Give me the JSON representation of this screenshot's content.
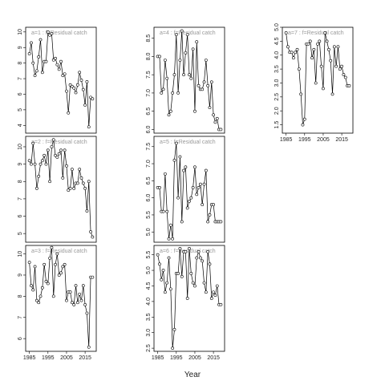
{
  "xlabel": "Year",
  "chart_data": [
    {
      "type": "line",
      "title": "a=1 : f=Residual catch",
      "x": [
        1985,
        1986,
        1987,
        1988,
        1989,
        1990,
        1991,
        1992,
        1993,
        1994,
        1995,
        1996,
        1997,
        1998,
        1999,
        2000,
        2001,
        2002,
        2003,
        2004,
        2005,
        2006,
        2007,
        2008,
        2009,
        2010,
        2011,
        2012,
        2013,
        2014,
        2015,
        2016,
        2017,
        2018,
        2019
      ],
      "values": [
        8.6,
        9.3,
        8.0,
        7.2,
        7.5,
        8.4,
        9.5,
        7.4,
        8.1,
        8.1,
        10.0,
        9.8,
        9.9,
        8.2,
        8.3,
        7.9,
        7.6,
        8.1,
        7.2,
        7.3,
        6.2,
        4.8,
        6.6,
        6.5,
        6.4,
        6.1,
        6.6,
        7.4,
        6.9,
        6.3,
        5.3,
        6.8,
        3.9,
        5.8,
        5.7
      ],
      "xlim": [
        1983,
        2021
      ],
      "ylim": [
        3.5,
        10.3
      ],
      "yticks": [
        4,
        5,
        6,
        7,
        8,
        9,
        10
      ]
    },
    {
      "type": "line",
      "title": "a=2 : f=Residual catch",
      "x": [
        1985,
        1986,
        1987,
        1988,
        1989,
        1990,
        1991,
        1992,
        1993,
        1994,
        1995,
        1996,
        1997,
        1998,
        1999,
        2000,
        2001,
        2002,
        2003,
        2004,
        2005,
        2006,
        2007,
        2008,
        2009,
        2010,
        2011,
        2012,
        2013,
        2014,
        2015,
        2016,
        2017,
        2018,
        2019
      ],
      "values": [
        9.2,
        9.0,
        10.2,
        9.0,
        7.6,
        8.3,
        9.0,
        9.2,
        9.5,
        9.0,
        9.8,
        8.0,
        10.0,
        10.4,
        9.5,
        9.4,
        9.6,
        9.8,
        8.2,
        9.8,
        8.9,
        7.5,
        7.6,
        8.7,
        7.6,
        7.9,
        7.9,
        8.7,
        8.2,
        7.9,
        7.6,
        6.3,
        8.0,
        5.1,
        4.8
      ],
      "xlim": [
        1983,
        2021
      ],
      "ylim": [
        4.5,
        10.6
      ],
      "yticks": [
        5,
        6,
        7,
        8,
        9,
        10
      ]
    },
    {
      "type": "line",
      "title": "a=3 : f=Residual catch",
      "x": [
        1985,
        1986,
        1987,
        1988,
        1989,
        1990,
        1991,
        1992,
        1993,
        1994,
        1995,
        1996,
        1997,
        1998,
        1999,
        2000,
        2001,
        2002,
        2003,
        2004,
        2005,
        2006,
        2007,
        2008,
        2009,
        2010,
        2011,
        2012,
        2013,
        2014,
        2015,
        2016,
        2017,
        2018,
        2019
      ],
      "values": [
        9.6,
        8.5,
        8.3,
        9.4,
        7.8,
        7.7,
        8.0,
        8.4,
        9.5,
        8.7,
        8.6,
        9.8,
        10.3,
        8.0,
        9.5,
        10.0,
        9.0,
        9.1,
        9.4,
        9.5,
        7.8,
        8.2,
        8.2,
        7.7,
        7.6,
        8.5,
        7.7,
        8.1,
        7.8,
        8.5,
        7.6,
        7.2,
        5.6,
        8.9,
        8.9
      ],
      "xlim": [
        1983,
        2021
      ],
      "ylim": [
        5.4,
        10.4
      ],
      "yticks": [
        6,
        7,
        8,
        9,
        10
      ],
      "xticks": [
        1985,
        1995,
        2005,
        2015
      ]
    },
    {
      "type": "line",
      "title": "a=4 : f=Residual catch",
      "x": [
        1985,
        1986,
        1987,
        1988,
        1989,
        1990,
        1991,
        1992,
        1993,
        1994,
        1995,
        1996,
        1997,
        1998,
        1999,
        2000,
        2001,
        2002,
        2003,
        2004,
        2005,
        2006,
        2007,
        2008,
        2009,
        2010,
        2011,
        2012,
        2013,
        2014,
        2015,
        2016,
        2017,
        2018,
        2019
      ],
      "values": [
        8.0,
        8.0,
        7.0,
        7.1,
        7.9,
        7.4,
        6.4,
        6.5,
        7.0,
        7.5,
        8.6,
        7.0,
        7.9,
        8.7,
        7.5,
        8.1,
        8.6,
        7.5,
        7.4,
        8.2,
        6.5,
        8.4,
        7.2,
        7.1,
        7.1,
        7.3,
        7.9,
        7.2,
        6.6,
        7.3,
        6.4,
        6.2,
        6.3,
        6.0,
        6.0
      ],
      "xlim": [
        1983,
        2021
      ],
      "ylim": [
        5.9,
        8.8
      ],
      "yticks": [
        {
          "value": 6,
          "label": "6.0"
        },
        6.5,
        {
          "value": 7,
          "label": "7.0"
        },
        7.5,
        {
          "value": 8,
          "label": "8.0"
        },
        8.5
      ]
    },
    {
      "type": "line",
      "title": "a=5 : f=Residual catch",
      "x": [
        1985,
        1986,
        1987,
        1988,
        1989,
        1990,
        1991,
        1992,
        1993,
        1994,
        1995,
        1996,
        1997,
        1998,
        1999,
        2000,
        2001,
        2002,
        2003,
        2004,
        2005,
        2006,
        2007,
        2008,
        2009,
        2010,
        2011,
        2012,
        2013,
        2014,
        2015,
        2016,
        2017,
        2018,
        2019
      ],
      "values": [
        6.3,
        6.3,
        5.6,
        5.6,
        6.7,
        5.6,
        4.8,
        5.2,
        4.8,
        7.1,
        7.6,
        6.0,
        7.2,
        5.3,
        6.8,
        6.9,
        5.7,
        5.9,
        6.0,
        6.3,
        6.9,
        6.1,
        6.3,
        6.4,
        5.8,
        6.4,
        6.8,
        5.3,
        5.5,
        5.8,
        5.8,
        5.3,
        5.3,
        5.3,
        5.3
      ],
      "xlim": [
        1983,
        2021
      ],
      "ylim": [
        4.7,
        7.8
      ],
      "yticks": [
        {
          "value": 5,
          "label": "5.0"
        },
        5.5,
        {
          "value": 6,
          "label": "6.0"
        },
        6.5,
        {
          "value": 7,
          "label": "7.0"
        },
        7.5
      ]
    },
    {
      "type": "line",
      "title": "a=6 : f=Residual catch",
      "x": [
        1985,
        1986,
        1987,
        1988,
        1989,
        1990,
        1991,
        1992,
        1993,
        1994,
        1995,
        1996,
        1997,
        1998,
        1999,
        2000,
        2001,
        2002,
        2003,
        2004,
        2005,
        2006,
        2007,
        2008,
        2009,
        2010,
        2011,
        2012,
        2013,
        2014,
        2015,
        2016,
        2017,
        2018,
        2019
      ],
      "values": [
        5.5,
        5.2,
        4.7,
        5.0,
        4.3,
        4.6,
        5.4,
        4.4,
        2.5,
        3.1,
        4.9,
        4.9,
        5.7,
        4.8,
        5.6,
        5.6,
        4.1,
        5.7,
        4.9,
        4.6,
        4.5,
        5.4,
        5.6,
        5.4,
        5.3,
        4.6,
        4.3,
        5.6,
        5.2,
        4.1,
        4.3,
        4.2,
        4.5,
        3.9,
        3.9
      ],
      "xlim": [
        1983,
        2021
      ],
      "ylim": [
        2.4,
        5.8
      ],
      "yticks": [
        2.5,
        {
          "value": 3,
          "label": "3.0"
        },
        3.5,
        {
          "value": 4,
          "label": "4.0"
        },
        4.5,
        {
          "value": 5,
          "label": "5.0"
        },
        5.5
      ],
      "xticks": [
        1985,
        1995,
        2005,
        2015
      ]
    },
    {
      "type": "line",
      "title": "a=7 : f=Residual catch",
      "x": [
        1985,
        1986,
        1987,
        1988,
        1989,
        1990,
        1991,
        1992,
        1993,
        1994,
        1995,
        1996,
        1997,
        1998,
        1999,
        2000,
        2001,
        2002,
        2003,
        2004,
        2005,
        2006,
        2007,
        2008,
        2009,
        2010,
        2011,
        2012,
        2013,
        2014,
        2015,
        2016,
        2017,
        2018,
        2019
      ],
      "values": [
        4.8,
        4.3,
        4.1,
        4.1,
        3.9,
        4.1,
        4.2,
        3.5,
        2.6,
        1.5,
        1.7,
        4.4,
        4.4,
        4.5,
        3.9,
        4.2,
        3.0,
        4.4,
        4.5,
        3.6,
        2.8,
        4.8,
        4.5,
        4.2,
        3.8,
        2.6,
        4.3,
        3.6,
        4.3,
        3.5,
        3.6,
        3.3,
        3.2,
        2.9,
        2.9
      ],
      "xlim": [
        1983,
        2021
      ],
      "ylim": [
        1.2,
        5.0
      ],
      "yticks": [
        1.5,
        {
          "value": 2,
          "label": "2.0"
        },
        2.5,
        {
          "value": 3,
          "label": "3.0"
        },
        3.5,
        {
          "value": 4,
          "label": "4.0"
        },
        4.5,
        {
          "value": 5,
          "label": "5.0"
        }
      ],
      "xticks": [
        1985,
        1995,
        2005,
        2015
      ]
    }
  ]
}
